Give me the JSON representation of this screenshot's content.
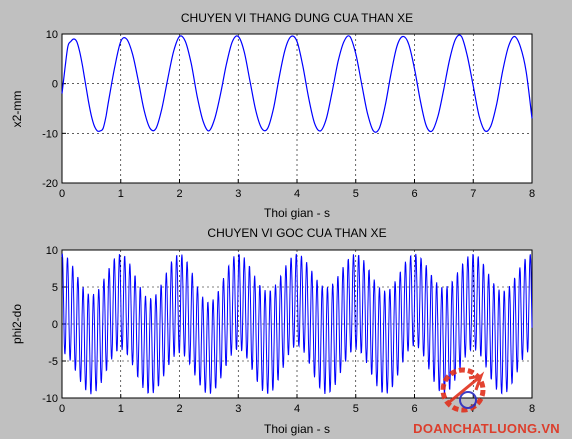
{
  "chart_data": [
    {
      "type": "line",
      "title": "CHUYEN VI THANG DUNG CUA THAN XE",
      "xlabel": "Thoi gian - s",
      "ylabel": "x2-mm",
      "xlim": [
        0,
        8
      ],
      "ylim": [
        -20,
        10
      ],
      "xticks": [
        "0",
        "1",
        "2",
        "3",
        "4",
        "5",
        "6",
        "7",
        "8"
      ],
      "yticks": [
        "10",
        "0",
        "-10",
        "-20"
      ],
      "grid": true,
      "series": [
        {
          "color": "#0000ff",
          "approx_model": "sinusoid, peaks about +9.5 mm, troughs about -9.5 mm, about 8.5 cycles over 0-8 s, starts near -2 mm",
          "x": [
            0.0,
            0.05,
            0.1,
            0.15,
            0.2,
            0.25,
            0.3,
            0.35,
            0.4,
            0.45,
            0.5,
            0.55,
            0.6,
            0.65,
            0.7,
            0.75,
            0.8,
            0.9,
            1.0,
            1.1,
            1.2,
            1.3,
            1.4,
            1.5,
            1.6,
            1.7,
            1.8,
            1.9,
            2.0,
            2.1,
            2.2,
            2.3,
            2.4,
            2.5,
            2.6,
            2.7,
            2.8,
            2.9,
            3.0,
            3.1,
            3.2,
            3.3,
            3.4,
            3.5,
            3.6,
            3.7,
            3.8,
            3.9,
            4.0,
            4.1,
            4.2,
            4.3,
            4.4,
            4.5,
            4.6,
            4.7,
            4.8,
            4.9,
            5.0,
            5.1,
            5.2,
            5.3,
            5.4,
            5.5,
            5.6,
            5.7,
            5.8,
            5.9,
            6.0,
            6.1,
            6.2,
            6.3,
            6.4,
            6.5,
            6.6,
            6.7,
            6.8,
            6.9,
            7.0,
            7.1,
            7.2,
            7.3,
            7.4,
            7.5,
            7.6,
            7.7,
            7.8,
            7.9,
            8.0
          ],
          "y": [
            -2.0,
            3.0,
            7.5,
            8.5,
            9.0,
            8.5,
            6.5,
            3.5,
            0.0,
            -3.5,
            -6.5,
            -8.5,
            -9.5,
            -9.5,
            -9.0,
            -6.5,
            -3.0,
            3.5,
            8.5,
            9.0,
            6.0,
            0.5,
            -5.5,
            -9.0,
            -9.0,
            -5.0,
            1.0,
            6.5,
            9.5,
            8.5,
            4.0,
            -2.5,
            -7.5,
            -9.5,
            -7.0,
            -2.0,
            4.0,
            8.5,
            9.5,
            6.5,
            0.5,
            -5.5,
            -9.0,
            -9.0,
            -5.0,
            1.5,
            7.0,
            9.5,
            8.5,
            3.5,
            -3.0,
            -8.0,
            -9.5,
            -7.0,
            -1.5,
            4.5,
            8.5,
            9.5,
            6.0,
            0.0,
            -6.0,
            -9.5,
            -9.0,
            -4.5,
            2.0,
            7.5,
            9.5,
            8.0,
            3.0,
            -3.5,
            -8.5,
            -9.5,
            -6.5,
            -1.0,
            5.0,
            9.0,
            9.5,
            5.5,
            -0.5,
            -6.5,
            -9.5,
            -8.5,
            -4.0,
            2.5,
            7.5,
            9.5,
            7.5,
            2.5,
            -7.0
          ]
        }
      ]
    },
    {
      "type": "line",
      "title": "CHUYEN VI GOC CUA THAN XE",
      "xlabel": "Thoi gian - s",
      "ylabel": "phi2-do",
      "xlim": [
        0,
        8
      ],
      "ylim": [
        -10,
        10
      ],
      "xticks": [
        "0",
        "1",
        "2",
        "3",
        "4",
        "5",
        "6",
        "7",
        "8"
      ],
      "yticks": [
        "10",
        "5",
        "0",
        "-5",
        "-10"
      ],
      "grid": true,
      "series": [
        {
          "color": "#0000ff",
          "approx_model": "low-frequency oscillation (about 1.1 Hz, amplitude about 3 deg) with dense high-frequency oscillation (amplitude about 5.5 deg) superimposed; overall range about -10 to +10",
          "envelope_x": [
            0.0,
            0.5,
            1.0,
            1.5,
            2.0,
            2.5,
            3.0,
            3.5,
            4.0,
            4.5,
            5.0,
            5.5,
            6.0,
            6.5,
            7.0,
            7.5,
            8.0
          ],
          "envelope_upper": [
            9.5,
            4.0,
            9.5,
            3.5,
            9.5,
            3.0,
            9.5,
            4.5,
            9.5,
            5.0,
            9.5,
            4.5,
            9.5,
            5.0,
            9.5,
            4.5,
            9.5
          ],
          "envelope_lower": [
            -4.0,
            -9.5,
            -3.5,
            -9.5,
            -4.0,
            -9.5,
            -3.5,
            -9.5,
            -3.0,
            -9.5,
            -3.5,
            -9.5,
            -3.0,
            -9.5,
            -3.5,
            -9.5,
            -3.5
          ]
        }
      ]
    }
  ],
  "watermark": {
    "text": "DOANCHATLUONG.VN",
    "color": "#e0301c"
  }
}
